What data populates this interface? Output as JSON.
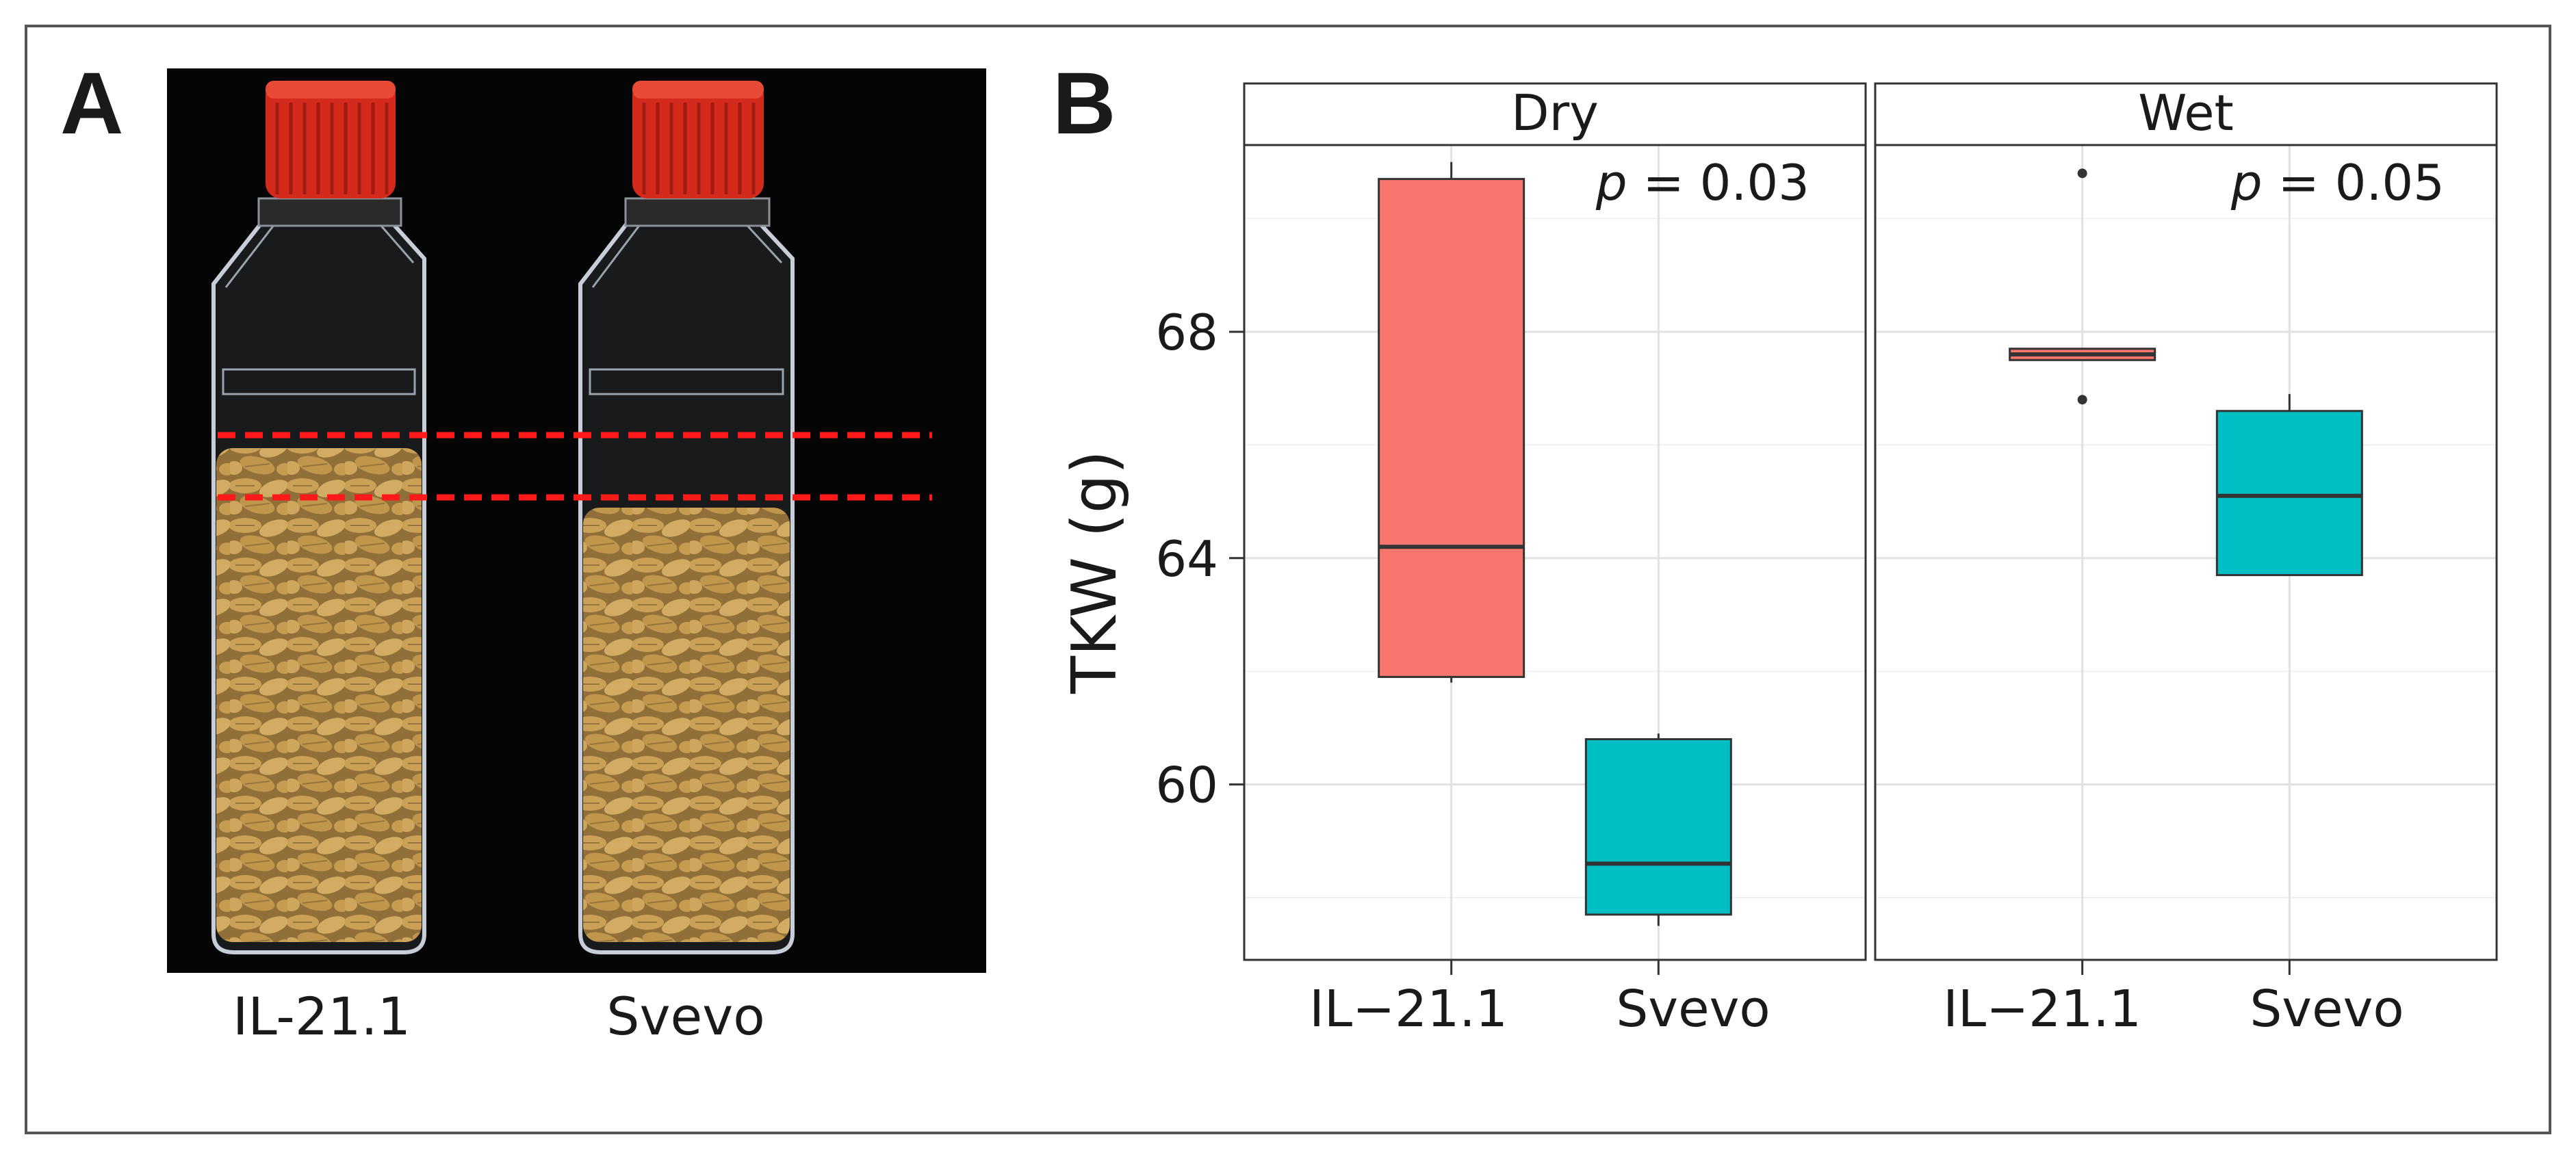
{
  "figure": {
    "panel_a": {
      "letter": "A",
      "photo_labels": [
        "IL-21.1",
        "Svevo"
      ],
      "colors": {
        "cap": "#d42a1c",
        "grain": "#c99a45",
        "dashed_line": "#ff1a1a",
        "background": "#050505"
      }
    },
    "panel_b": {
      "letter": "B"
    }
  },
  "chart_data": {
    "type": "box",
    "ylabel": "TKW (g)",
    "xlabel": "",
    "ylim": [
      56.9,
      71.3
    ],
    "yticks": [
      60,
      64,
      68
    ],
    "grid": true,
    "facets": [
      {
        "strip": "Dry",
        "annotation_p": "p",
        "annotation_value": " = 0.03",
        "categories": [
          "IL−21.1",
          "Svevo"
        ],
        "boxes": [
          {
            "category": "IL−21.1",
            "whisker_low": 61.8,
            "q1": 61.9,
            "median": 64.2,
            "q3": 70.7,
            "whisker_high": 71.0,
            "outliers": [],
            "color": "#f8766d"
          },
          {
            "category": "Svevo",
            "whisker_low": 57.5,
            "q1": 57.7,
            "median": 58.6,
            "q3": 60.8,
            "whisker_high": 60.9,
            "outliers": [],
            "color": "#00bfc4"
          }
        ]
      },
      {
        "strip": "Wet",
        "annotation_p": "p",
        "annotation_value": " = 0.05",
        "categories": [
          "IL−21.1",
          "Svevo"
        ],
        "boxes": [
          {
            "category": "IL−21.1",
            "whisker_low": 67.5,
            "q1": 67.5,
            "median": 67.6,
            "q3": 67.7,
            "whisker_high": 67.7,
            "outliers": [
              66.8,
              70.8
            ],
            "color": "#f8766d"
          },
          {
            "category": "Svevo",
            "whisker_low": 63.7,
            "q1": 63.7,
            "median": 65.1,
            "q3": 66.6,
            "whisker_high": 66.9,
            "outliers": [],
            "color": "#00bfc4"
          }
        ]
      }
    ]
  }
}
